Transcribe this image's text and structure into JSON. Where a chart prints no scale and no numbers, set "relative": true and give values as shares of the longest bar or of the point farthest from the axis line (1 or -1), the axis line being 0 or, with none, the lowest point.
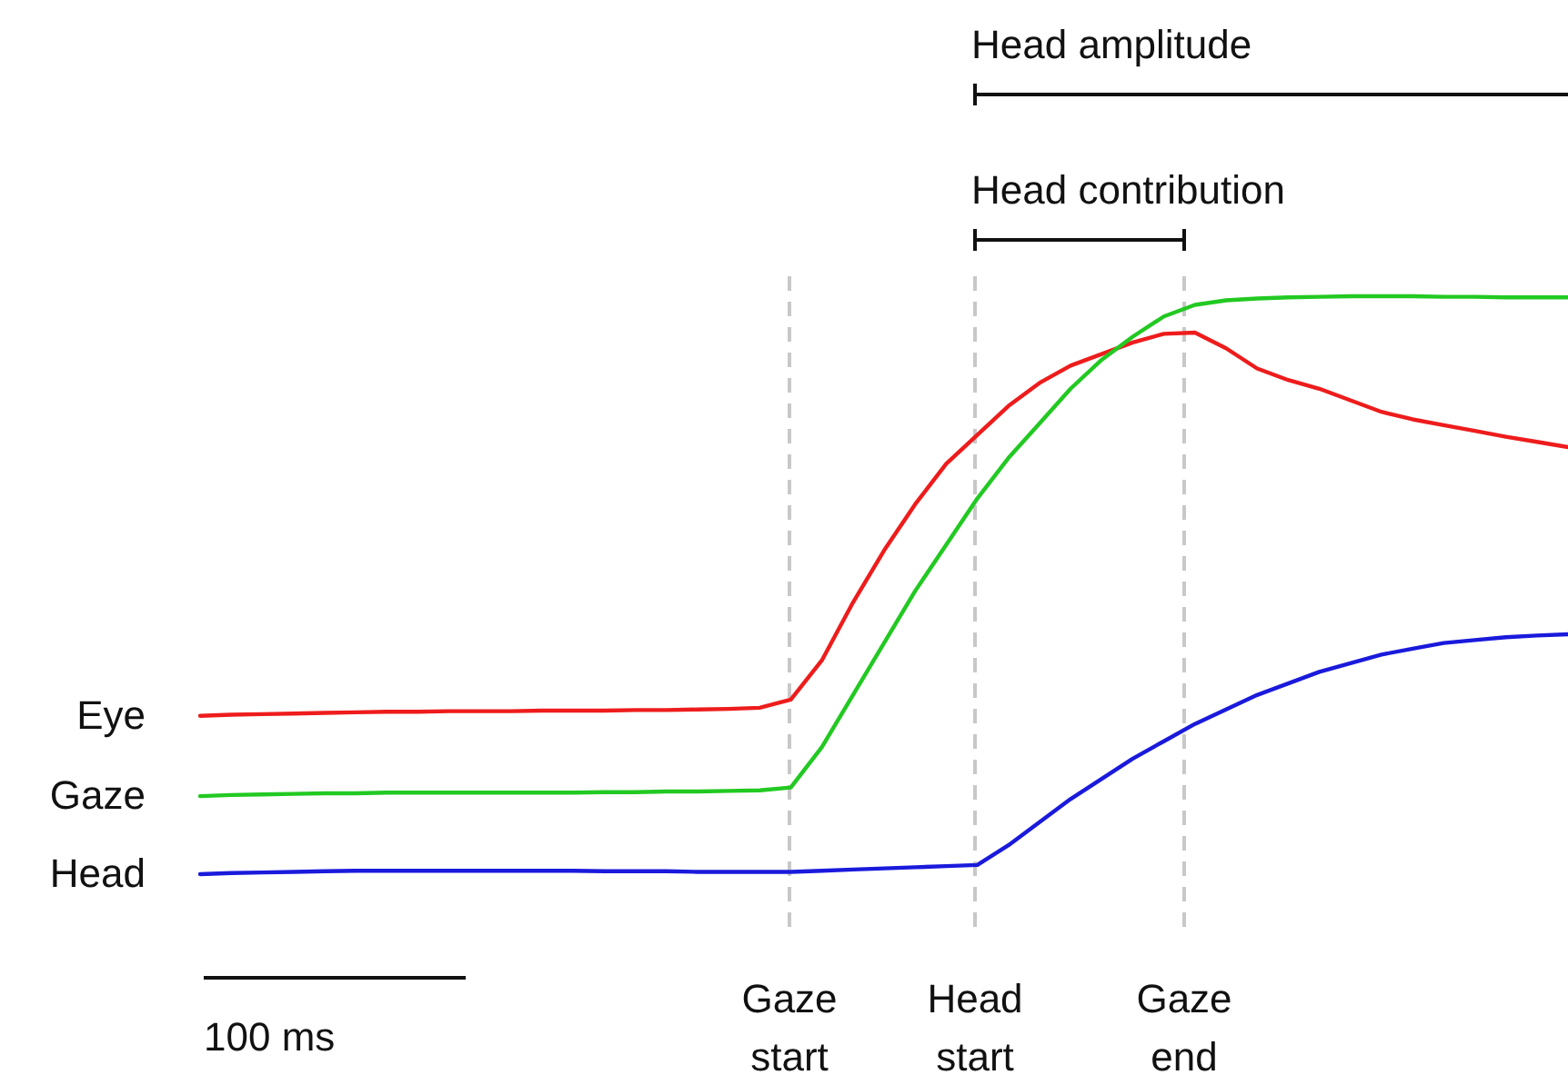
{
  "chart_data": {
    "type": "line",
    "relative": true,
    "legend": false,
    "categories": [
      null,
      null,
      null,
      null,
      null,
      null,
      null,
      null,
      null,
      null,
      null,
      null,
      null,
      null,
      null,
      null,
      null,
      null,
      null,
      null,
      null,
      null,
      null,
      null,
      null,
      null,
      null,
      null,
      null,
      null,
      null,
      null,
      null,
      null,
      null,
      null,
      null,
      null,
      null,
      null,
      null,
      null,
      null,
      null,
      null
    ],
    "series": [
      {
        "name": "Eye",
        "color": "#ee1c1c",
        "values": [
          0.274,
          0.276,
          0.277,
          0.278,
          0.279,
          0.28,
          0.281,
          0.281,
          0.282,
          0.282,
          0.282,
          0.283,
          0.283,
          0.283,
          0.284,
          0.284,
          0.285,
          0.286,
          0.288,
          0.302,
          0.37,
          0.47,
          0.56,
          0.64,
          0.71,
          0.76,
          0.81,
          0.85,
          0.88,
          0.9,
          0.92,
          0.935,
          0.937,
          0.91,
          0.875,
          0.855,
          0.84,
          0.82,
          0.8,
          0.787,
          0.777,
          0.767,
          0.757,
          0.748,
          0.739
        ]
      },
      {
        "name": "Gaze",
        "color": "#22c922",
        "values": [
          0.135,
          0.137,
          0.138,
          0.139,
          0.14,
          0.14,
          0.141,
          0.141,
          0.141,
          0.141,
          0.141,
          0.141,
          0.141,
          0.142,
          0.142,
          0.143,
          0.143,
          0.144,
          0.145,
          0.15,
          0.22,
          0.31,
          0.4,
          0.49,
          0.57,
          0.65,
          0.72,
          0.78,
          0.84,
          0.89,
          0.93,
          0.965,
          0.985,
          0.993,
          0.996,
          0.998,
          0.999,
          1.0,
          1.0,
          1.0,
          0.999,
          0.999,
          0.998,
          0.998,
          0.998
        ]
      },
      {
        "name": "Head",
        "color": "#1a1adc",
        "values": [
          0,
          0.002,
          0.003,
          0.004,
          0.005,
          0.006,
          0.006,
          0.006,
          0.006,
          0.006,
          0.006,
          0.006,
          0.006,
          0.005,
          0.005,
          0.005,
          0.004,
          0.004,
          0.004,
          0.004,
          0.006,
          0.008,
          0.01,
          0.012,
          0.014,
          0.016,
          0.05,
          0.09,
          0.13,
          0.165,
          0.2,
          0.23,
          0.26,
          0.285,
          0.31,
          0.33,
          0.35,
          0.365,
          0.38,
          0.39,
          0.4,
          0.405,
          0.41,
          0.413,
          0.415
        ]
      }
    ],
    "annotations": [
      "Head amplitude",
      "Head contribution",
      "Gaze start",
      "Head start",
      "Gaze end",
      "100 ms"
    ]
  }
}
